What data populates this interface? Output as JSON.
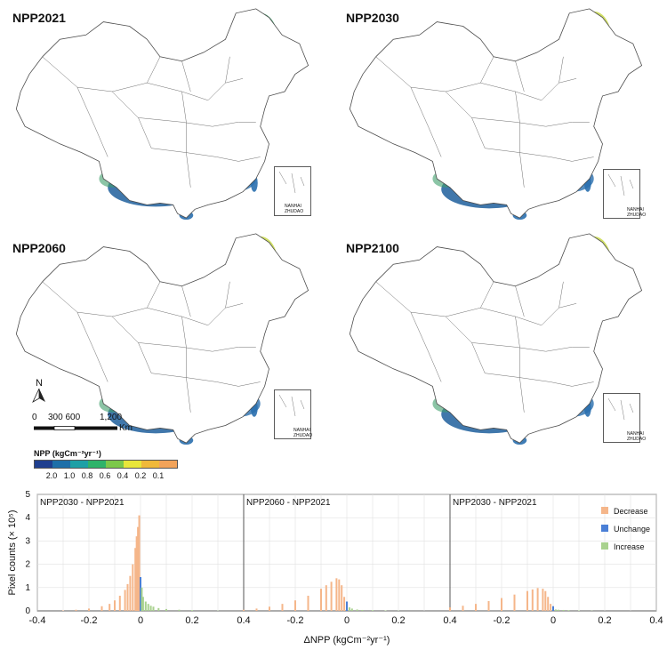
{
  "maps": [
    {
      "id": "npp2021",
      "title": "NPP2021"
    },
    {
      "id": "npp2030",
      "title": "NPP2030"
    },
    {
      "id": "npp2060",
      "title": "NPP2060"
    },
    {
      "id": "npp2100",
      "title": "NPP2100"
    }
  ],
  "inset": {
    "line1": "NANHAI",
    "line2": "ZHUDAO"
  },
  "north_arrow": {
    "label": "N"
  },
  "scale_bar": {
    "ticks": [
      "0",
      "300 600",
      "1,200"
    ],
    "unit": "Km"
  },
  "legend": {
    "title": "NPP (kgCm⁻²yr⁻¹)",
    "colors": [
      "#1f3f8f",
      "#1e6fa8",
      "#1ea0a6",
      "#2fb36a",
      "#7cc84a",
      "#e8e63a",
      "#f0b93a",
      "#f2a35a"
    ],
    "tick_labels": [
      "2.0",
      "1.0",
      "0.8",
      "0.6",
      "0.4",
      "0.2",
      "0.1"
    ]
  },
  "colors": {
    "decrease": "#f5b68a",
    "unchange": "#4a7fd6",
    "increase": "#a8d18e"
  },
  "chart_data": {
    "type": "bar",
    "ylabel": "Pixel counts (× 10⁵)",
    "xlabel": "ΔNPP (kgCm⁻²yr⁻¹)",
    "xticks": [
      "-0.4",
      "-0.2",
      "0",
      "0.2",
      "0.4",
      "-0.2",
      "0",
      "0.2",
      "0.4",
      "-0.2",
      "0",
      "0.2",
      "0.4"
    ],
    "yticks": [
      "0",
      "1",
      "2",
      "3",
      "4",
      "5"
    ],
    "xlim": [
      -0.4,
      0.4
    ],
    "ylim": [
      0,
      5
    ],
    "grid": true,
    "legend": [
      "Decrease",
      "Unchange",
      "Increase"
    ],
    "legend_position": "top-right",
    "panels": [
      {
        "title": "NPP2030 - NPP2021",
        "decrease": {
          "x": [
            -0.3,
            -0.25,
            -0.2,
            -0.15,
            -0.12,
            -0.1,
            -0.08,
            -0.06,
            -0.05,
            -0.04,
            -0.03,
            -0.02,
            -0.015,
            -0.01,
            -0.005
          ],
          "y": [
            0.02,
            0.05,
            0.1,
            0.2,
            0.3,
            0.45,
            0.65,
            0.9,
            1.15,
            1.5,
            2.0,
            2.7,
            3.2,
            3.6,
            4.1
          ]
        },
        "unchange": {
          "x": [
            0
          ],
          "y": [
            1.45
          ]
        },
        "increase": {
          "x": [
            0.005,
            0.01,
            0.02,
            0.03,
            0.04,
            0.05,
            0.07,
            0.1,
            0.15,
            0.2,
            0.3
          ],
          "y": [
            1.0,
            0.6,
            0.4,
            0.3,
            0.22,
            0.18,
            0.12,
            0.08,
            0.05,
            0.03,
            0.01
          ]
        }
      },
      {
        "title": "NPP2060 - NPP2021",
        "decrease": {
          "x": [
            -0.4,
            -0.35,
            -0.3,
            -0.25,
            -0.2,
            -0.15,
            -0.1,
            -0.08,
            -0.06,
            -0.04,
            -0.03,
            -0.02,
            -0.01
          ],
          "y": [
            0.05,
            0.1,
            0.18,
            0.3,
            0.45,
            0.65,
            0.95,
            1.1,
            1.25,
            1.4,
            1.35,
            1.1,
            0.6
          ]
        },
        "unchange": {
          "x": [
            0
          ],
          "y": [
            0.4
          ]
        },
        "increase": {
          "x": [
            0.01,
            0.02,
            0.04,
            0.06,
            0.1,
            0.15,
            0.2
          ],
          "y": [
            0.15,
            0.1,
            0.06,
            0.04,
            0.03,
            0.02,
            0.01
          ]
        }
      },
      {
        "title": "NPP2030 - NPP2021",
        "decrease": {
          "x": [
            -0.4,
            -0.35,
            -0.3,
            -0.25,
            -0.2,
            -0.15,
            -0.1,
            -0.08,
            -0.06,
            -0.04,
            -0.03,
            -0.02,
            -0.01
          ],
          "y": [
            0.15,
            0.22,
            0.3,
            0.42,
            0.55,
            0.7,
            0.85,
            0.92,
            0.98,
            0.95,
            0.85,
            0.6,
            0.3
          ]
        },
        "unchange": {
          "x": [
            0
          ],
          "y": [
            0.2
          ]
        },
        "increase": {
          "x": [
            0.01,
            0.02,
            0.04,
            0.06,
            0.1,
            0.15
          ],
          "y": [
            0.06,
            0.05,
            0.04,
            0.03,
            0.02,
            0.01
          ]
        }
      }
    ]
  }
}
